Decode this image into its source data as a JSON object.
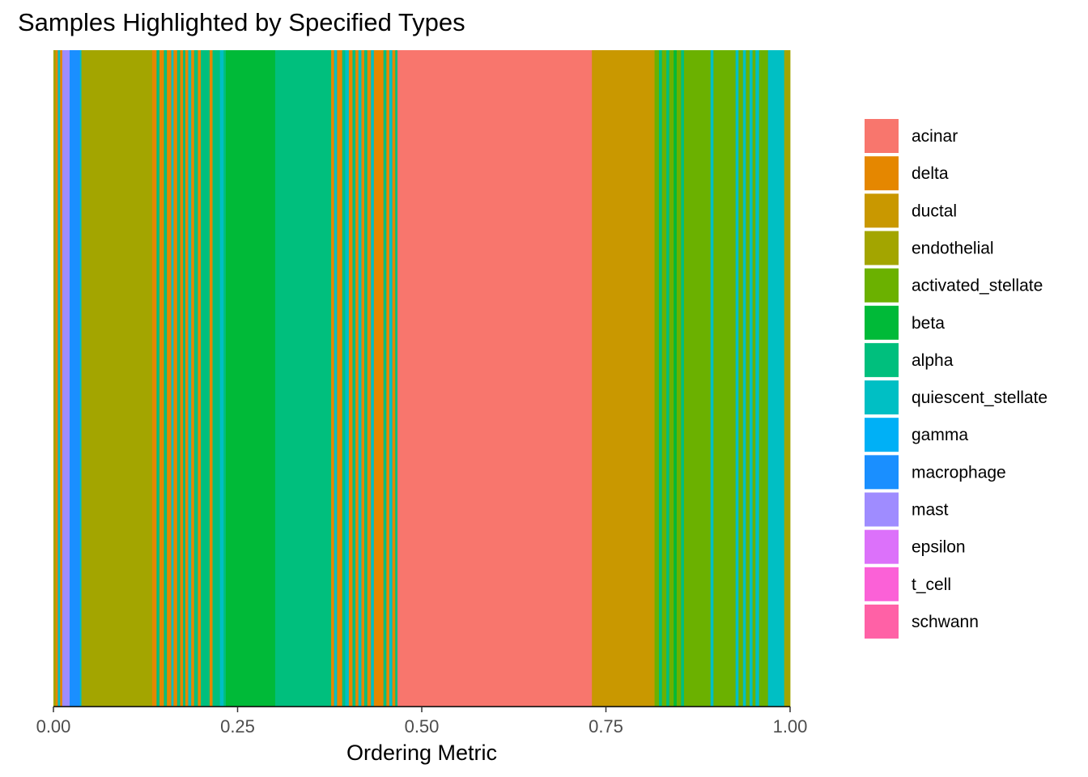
{
  "chart_data": {
    "type": "bar",
    "title": "Samples Highlighted by Specified Types",
    "xlabel": "Ordering Metric",
    "ylabel": "",
    "xlim": [
      0,
      1
    ],
    "x_ticks": [
      "0.00",
      "0.25",
      "0.50",
      "0.75",
      "1.00"
    ],
    "x_tick_values": [
      0,
      0.25,
      0.5,
      0.75,
      1
    ],
    "grid": false,
    "legend_position": "right",
    "legend": [
      {
        "name": "acinar",
        "color": "#F8766D"
      },
      {
        "name": "delta",
        "color": "#E58700"
      },
      {
        "name": "ductal",
        "color": "#C99800"
      },
      {
        "name": "endothelial",
        "color": "#A3A500"
      },
      {
        "name": "activated_stellate",
        "color": "#6BB100"
      },
      {
        "name": "beta",
        "color": "#00BA38"
      },
      {
        "name": "alpha",
        "color": "#00BF7D"
      },
      {
        "name": "quiescent_stellate",
        "color": "#00BFC4"
      },
      {
        "name": "gamma",
        "color": "#00B0F6"
      },
      {
        "name": "macrophage",
        "color": "#1A8FFF"
      },
      {
        "name": "mast",
        "color": "#9F8CFF"
      },
      {
        "name": "epsilon",
        "color": "#DC71FA"
      },
      {
        "name": "t_cell",
        "color": "#FB61D7"
      },
      {
        "name": "schwann",
        "color": "#FF61A6"
      }
    ],
    "segments": [
      {
        "start": 0.0,
        "end": 0.003,
        "type": "endothelial"
      },
      {
        "start": 0.003,
        "end": 0.006,
        "type": "delta"
      },
      {
        "start": 0.006,
        "end": 0.009,
        "type": "quiescent_stellate"
      },
      {
        "start": 0.009,
        "end": 0.012,
        "type": "delta"
      },
      {
        "start": 0.012,
        "end": 0.022,
        "type": "mast"
      },
      {
        "start": 0.022,
        "end": 0.036,
        "type": "macrophage"
      },
      {
        "start": 0.036,
        "end": 0.038,
        "type": "quiescent_stellate"
      },
      {
        "start": 0.038,
        "end": 0.134,
        "type": "endothelial"
      },
      {
        "start": 0.134,
        "end": 0.14,
        "type": "delta"
      },
      {
        "start": 0.14,
        "end": 0.144,
        "type": "alpha"
      },
      {
        "start": 0.144,
        "end": 0.15,
        "type": "delta"
      },
      {
        "start": 0.15,
        "end": 0.154,
        "type": "alpha"
      },
      {
        "start": 0.154,
        "end": 0.16,
        "type": "delta"
      },
      {
        "start": 0.16,
        "end": 0.163,
        "type": "quiescent_stellate"
      },
      {
        "start": 0.163,
        "end": 0.168,
        "type": "delta"
      },
      {
        "start": 0.168,
        "end": 0.172,
        "type": "alpha"
      },
      {
        "start": 0.172,
        "end": 0.176,
        "type": "delta"
      },
      {
        "start": 0.176,
        "end": 0.179,
        "type": "alpha"
      },
      {
        "start": 0.179,
        "end": 0.183,
        "type": "delta"
      },
      {
        "start": 0.183,
        "end": 0.187,
        "type": "quiescent_stellate"
      },
      {
        "start": 0.187,
        "end": 0.191,
        "type": "delta"
      },
      {
        "start": 0.191,
        "end": 0.196,
        "type": "alpha"
      },
      {
        "start": 0.196,
        "end": 0.2,
        "type": "delta"
      },
      {
        "start": 0.2,
        "end": 0.212,
        "type": "alpha"
      },
      {
        "start": 0.212,
        "end": 0.216,
        "type": "delta"
      },
      {
        "start": 0.216,
        "end": 0.226,
        "type": "alpha"
      },
      {
        "start": 0.226,
        "end": 0.231,
        "type": "quiescent_stellate"
      },
      {
        "start": 0.231,
        "end": 0.234,
        "type": "alpha"
      },
      {
        "start": 0.234,
        "end": 0.301,
        "type": "beta"
      },
      {
        "start": 0.301,
        "end": 0.377,
        "type": "alpha"
      },
      {
        "start": 0.377,
        "end": 0.381,
        "type": "delta"
      },
      {
        "start": 0.381,
        "end": 0.385,
        "type": "quiescent_stellate"
      },
      {
        "start": 0.385,
        "end": 0.392,
        "type": "delta"
      },
      {
        "start": 0.392,
        "end": 0.396,
        "type": "alpha"
      },
      {
        "start": 0.396,
        "end": 0.401,
        "type": "quiescent_stellate"
      },
      {
        "start": 0.401,
        "end": 0.406,
        "type": "delta"
      },
      {
        "start": 0.406,
        "end": 0.41,
        "type": "alpha"
      },
      {
        "start": 0.41,
        "end": 0.414,
        "type": "delta"
      },
      {
        "start": 0.414,
        "end": 0.418,
        "type": "quiescent_stellate"
      },
      {
        "start": 0.418,
        "end": 0.422,
        "type": "delta"
      },
      {
        "start": 0.422,
        "end": 0.426,
        "type": "alpha"
      },
      {
        "start": 0.426,
        "end": 0.431,
        "type": "delta"
      },
      {
        "start": 0.431,
        "end": 0.435,
        "type": "quiescent_stellate"
      },
      {
        "start": 0.435,
        "end": 0.448,
        "type": "delta"
      },
      {
        "start": 0.448,
        "end": 0.452,
        "type": "alpha"
      },
      {
        "start": 0.452,
        "end": 0.456,
        "type": "delta"
      },
      {
        "start": 0.456,
        "end": 0.46,
        "type": "quiescent_stellate"
      },
      {
        "start": 0.46,
        "end": 0.464,
        "type": "delta"
      },
      {
        "start": 0.464,
        "end": 0.467,
        "type": "alpha"
      },
      {
        "start": 0.467,
        "end": 0.731,
        "type": "acinar"
      },
      {
        "start": 0.731,
        "end": 0.816,
        "type": "ductal"
      },
      {
        "start": 0.816,
        "end": 0.822,
        "type": "activated_stellate"
      },
      {
        "start": 0.822,
        "end": 0.826,
        "type": "alpha"
      },
      {
        "start": 0.826,
        "end": 0.832,
        "type": "activated_stellate"
      },
      {
        "start": 0.832,
        "end": 0.836,
        "type": "alpha"
      },
      {
        "start": 0.836,
        "end": 0.842,
        "type": "activated_stellate"
      },
      {
        "start": 0.842,
        "end": 0.846,
        "type": "beta"
      },
      {
        "start": 0.846,
        "end": 0.852,
        "type": "activated_stellate"
      },
      {
        "start": 0.852,
        "end": 0.856,
        "type": "alpha"
      },
      {
        "start": 0.856,
        "end": 0.892,
        "type": "activated_stellate"
      },
      {
        "start": 0.892,
        "end": 0.896,
        "type": "quiescent_stellate"
      },
      {
        "start": 0.896,
        "end": 0.926,
        "type": "activated_stellate"
      },
      {
        "start": 0.926,
        "end": 0.93,
        "type": "quiescent_stellate"
      },
      {
        "start": 0.93,
        "end": 0.936,
        "type": "activated_stellate"
      },
      {
        "start": 0.936,
        "end": 0.94,
        "type": "quiescent_stellate"
      },
      {
        "start": 0.94,
        "end": 0.945,
        "type": "activated_stellate"
      },
      {
        "start": 0.945,
        "end": 0.949,
        "type": "quiescent_stellate"
      },
      {
        "start": 0.949,
        "end": 0.953,
        "type": "activated_stellate"
      },
      {
        "start": 0.953,
        "end": 0.958,
        "type": "quiescent_stellate"
      },
      {
        "start": 0.958,
        "end": 0.97,
        "type": "activated_stellate"
      },
      {
        "start": 0.97,
        "end": 0.992,
        "type": "quiescent_stellate"
      },
      {
        "start": 0.992,
        "end": 1.0,
        "type": "endothelial"
      }
    ]
  }
}
